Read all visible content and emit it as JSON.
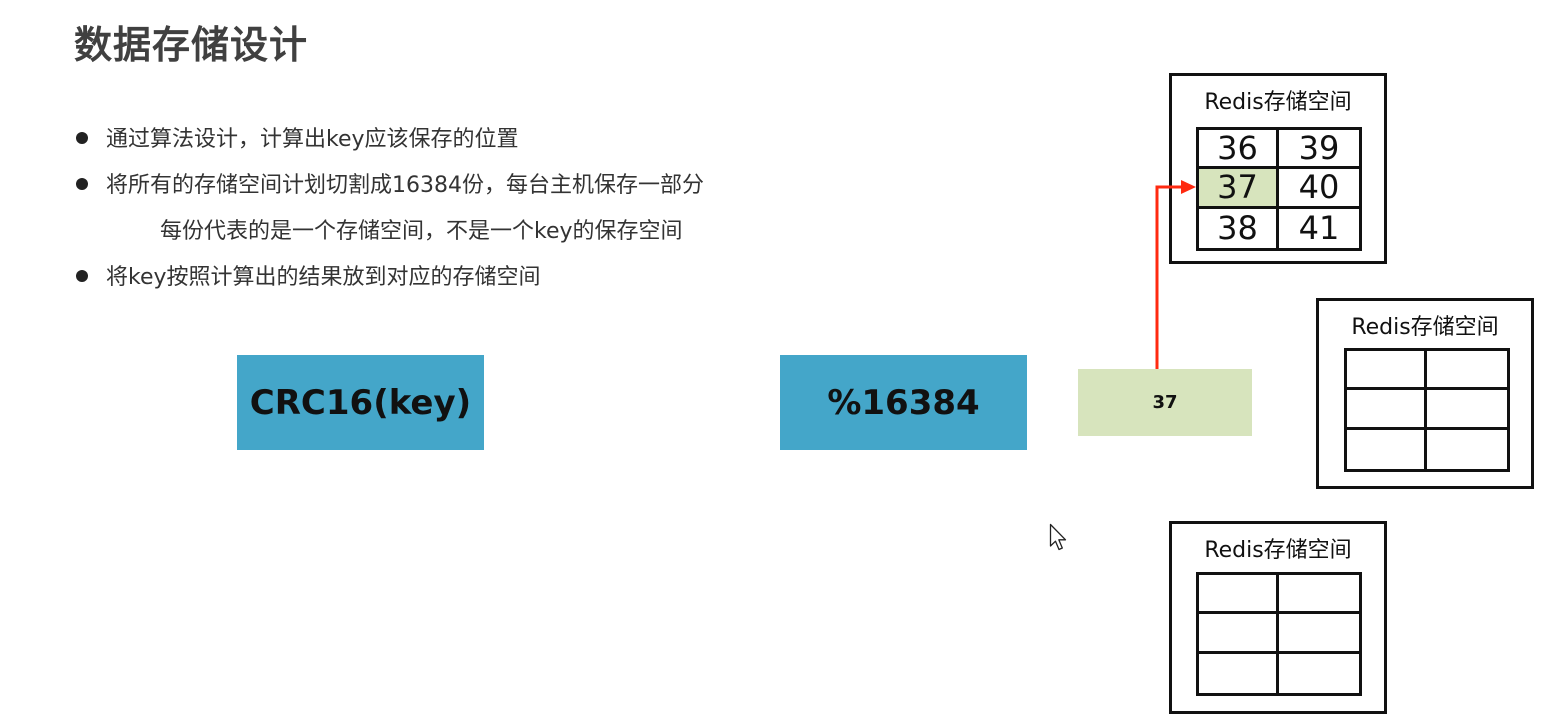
{
  "slide": {
    "title": "数据存储设计",
    "bullets": [
      "通过算法设计，计算出key应该保存的位置",
      "将所有的存储空间计划切割成16384份，每台主机保存一部分",
      "将key按照计算出的结果放到对应的存储空间"
    ],
    "sub_bullet": "每份代表的是一个存储空间，不是一个key的保存空间"
  },
  "flow": {
    "hash_box": "CRC16(key)",
    "mod_box": "%16384",
    "result_box": "37"
  },
  "redis_nodes": [
    {
      "label": "Redis存储空间",
      "slots": [
        "36",
        "39",
        "37",
        "40",
        "38",
        "41"
      ],
      "highlight_index": 2
    },
    {
      "label": "Redis存储空间",
      "slots": [
        "",
        "",
        "",
        "",
        "",
        ""
      ]
    },
    {
      "label": "Redis存储空间",
      "slots": [
        "",
        "",
        "",
        "",
        "",
        ""
      ]
    }
  ],
  "colors": {
    "blue_box": "#44a6c9",
    "green_box": "#d7e4bd",
    "arrow": "#ff2a10"
  },
  "icons": {
    "cursor": "mouse-pointer-icon"
  }
}
